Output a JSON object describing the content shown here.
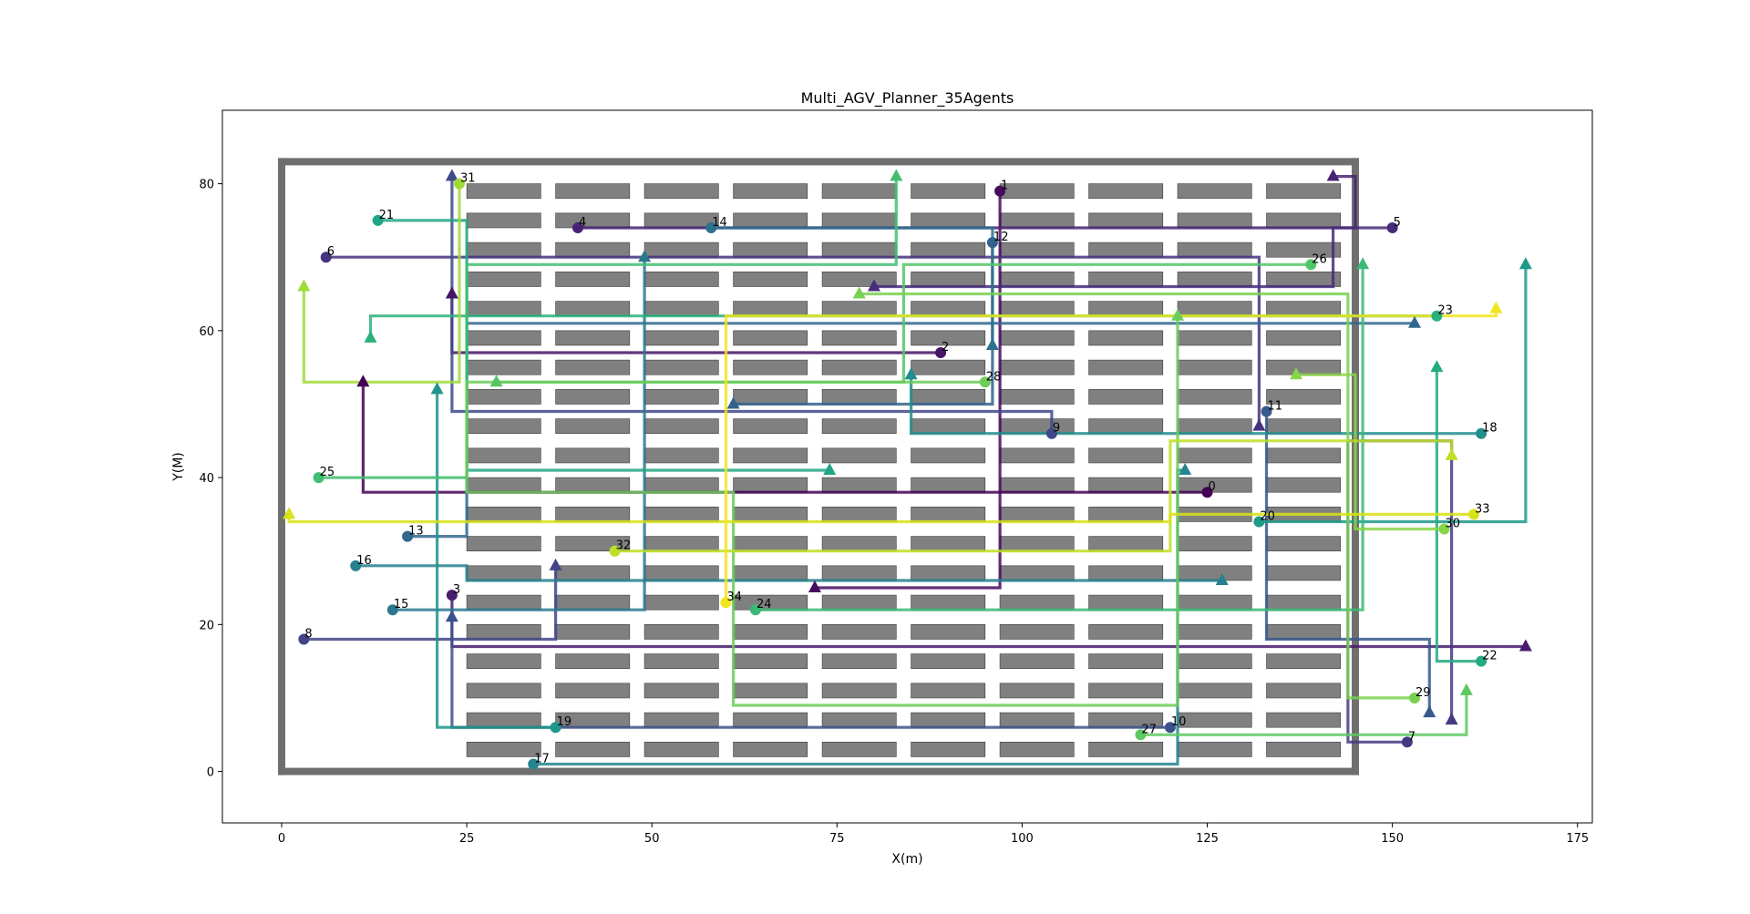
{
  "chart_data": {
    "type": "line",
    "title": "Multi_AGV_Planner_35Agents",
    "xlabel": "X(m)",
    "ylabel": "Y(M)",
    "xlim": [
      -8,
      177
    ],
    "ylim": [
      -7,
      90
    ],
    "xticks": [
      0,
      25,
      50,
      75,
      100,
      125,
      150,
      175
    ],
    "yticks": [
      0,
      20,
      40,
      60,
      80
    ],
    "grid": false,
    "legend": "none",
    "warehouse": {
      "boundary": [
        0,
        145,
        0,
        83
      ],
      "shelf_columns": [
        [
          25,
          35
        ],
        [
          37,
          47
        ],
        [
          49,
          59
        ],
        [
          61,
          71
        ],
        [
          73,
          83
        ],
        [
          85,
          95
        ],
        [
          97,
          107
        ],
        [
          109,
          119
        ],
        [
          121,
          131
        ],
        [
          133,
          143
        ]
      ],
      "shelf_rows_y": [
        2,
        6,
        10,
        14,
        18,
        22,
        26,
        30,
        34,
        38,
        42,
        46,
        50,
        54,
        58,
        62,
        66,
        70,
        74,
        78
      ],
      "shelf_height": 2,
      "shelf_color": "#808080",
      "boundary_color": "#6f6f6f"
    },
    "agents": [
      {
        "id": "0",
        "color": "#440154",
        "start": [
          125,
          38
        ],
        "goal": [
          11,
          53
        ],
        "path": [
          [
            125,
            38
          ],
          [
            11,
            38
          ],
          [
            11,
            53
          ]
        ]
      },
      {
        "id": "1",
        "color": "#460b5e",
        "start": [
          97,
          79
        ],
        "goal": [
          72,
          25
        ],
        "path": [
          [
            97,
            79
          ],
          [
            97,
            25
          ],
          [
            72,
            25
          ]
        ]
      },
      {
        "id": "2",
        "color": "#481467",
        "start": [
          89,
          57
        ],
        "goal": [
          23,
          65
        ],
        "path": [
          [
            89,
            57
          ],
          [
            23,
            57
          ],
          [
            23,
            65
          ]
        ]
      },
      {
        "id": "3",
        "color": "#481c6e",
        "start": [
          23,
          24
        ],
        "goal": [
          168,
          17
        ],
        "path": [
          [
            23,
            24
          ],
          [
            23,
            17
          ],
          [
            168,
            17
          ]
        ]
      },
      {
        "id": "4",
        "color": "#482374",
        "start": [
          40,
          74
        ],
        "goal": [
          142,
          81
        ],
        "path": [
          [
            40,
            74
          ],
          [
            145,
            74
          ],
          [
            145,
            81
          ],
          [
            142,
            81
          ]
        ]
      },
      {
        "id": "5",
        "color": "#472c7a",
        "start": [
          150,
          74
        ],
        "goal": [
          80,
          66
        ],
        "path": [
          [
            150,
            74
          ],
          [
            142,
            74
          ],
          [
            142,
            66
          ],
          [
            80,
            66
          ]
        ]
      },
      {
        "id": "6",
        "color": "#46337f",
        "start": [
          6,
          70
        ],
        "goal": [
          132,
          47
        ],
        "path": [
          [
            6,
            70
          ],
          [
            132,
            70
          ],
          [
            132,
            47
          ]
        ]
      },
      {
        "id": "7",
        "color": "#443983",
        "start": [
          152,
          4
        ],
        "goal": [
          158,
          7
        ],
        "path": [
          [
            152,
            4
          ],
          [
            144,
            4
          ],
          [
            144,
            45
          ],
          [
            158,
            45
          ],
          [
            158,
            7
          ]
        ]
      },
      {
        "id": "8",
        "color": "#414487",
        "start": [
          3,
          18
        ],
        "goal": [
          37,
          28
        ],
        "path": [
          [
            3,
            18
          ],
          [
            37,
            18
          ],
          [
            37,
            28
          ]
        ]
      },
      {
        "id": "9",
        "color": "#3e4989",
        "start": [
          104,
          46
        ],
        "goal": [
          23,
          81
        ],
        "path": [
          [
            104,
            46
          ],
          [
            104,
            49
          ],
          [
            23,
            49
          ],
          [
            23,
            81
          ]
        ]
      },
      {
        "id": "10",
        "color": "#3b528b",
        "start": [
          120,
          6
        ],
        "goal": [
          23,
          21
        ],
        "path": [
          [
            120,
            6
          ],
          [
            23,
            6
          ],
          [
            23,
            21
          ]
        ]
      },
      {
        "id": "11",
        "color": "#37598c",
        "start": [
          133,
          49
        ],
        "goal": [
          155,
          8
        ],
        "path": [
          [
            133,
            49
          ],
          [
            133,
            18
          ],
          [
            155,
            18
          ],
          [
            155,
            8
          ]
        ]
      },
      {
        "id": "12",
        "color": "#33638d",
        "start": [
          96,
          72
        ],
        "goal": [
          61,
          50
        ],
        "path": [
          [
            96,
            72
          ],
          [
            96,
            50
          ],
          [
            61,
            50
          ]
        ]
      },
      {
        "id": "13",
        "color": "#31688e",
        "start": [
          17,
          32
        ],
        "goal": [
          153,
          61
        ],
        "path": [
          [
            17,
            32
          ],
          [
            25,
            32
          ],
          [
            25,
            61
          ],
          [
            153,
            61
          ]
        ]
      },
      {
        "id": "14",
        "color": "#2d718e",
        "start": [
          58,
          74
        ],
        "goal": [
          96,
          58
        ],
        "path": [
          [
            58,
            74
          ],
          [
            96,
            74
          ],
          [
            96,
            58
          ]
        ]
      },
      {
        "id": "15",
        "color": "#2a788e",
        "start": [
          15,
          22
        ],
        "goal": [
          49,
          70
        ],
        "path": [
          [
            15,
            22
          ],
          [
            49,
            22
          ],
          [
            49,
            70
          ]
        ]
      },
      {
        "id": "16",
        "color": "#27808e",
        "start": [
          10,
          28
        ],
        "goal": [
          127,
          26
        ],
        "path": [
          [
            10,
            28
          ],
          [
            25,
            28
          ],
          [
            25,
            26
          ],
          [
            127,
            26
          ]
        ]
      },
      {
        "id": "17",
        "color": "#25858e",
        "start": [
          34,
          1
        ],
        "goal": [
          122,
          41
        ],
        "path": [
          [
            34,
            1
          ],
          [
            121,
            1
          ],
          [
            121,
            41
          ],
          [
            122,
            41
          ]
        ]
      },
      {
        "id": "18",
        "color": "#228d8d",
        "start": [
          162,
          46
        ],
        "goal": [
          85,
          54
        ],
        "path": [
          [
            162,
            46
          ],
          [
            85,
            46
          ],
          [
            85,
            54
          ]
        ]
      },
      {
        "id": "19",
        "color": "#1f958b",
        "start": [
          37,
          6
        ],
        "goal": [
          21,
          52
        ],
        "path": [
          [
            37,
            6
          ],
          [
            21,
            6
          ],
          [
            21,
            52
          ]
        ]
      },
      {
        "id": "20",
        "color": "#1f9a8a",
        "start": [
          132,
          34
        ],
        "goal": [
          168,
          69
        ],
        "path": [
          [
            132,
            34
          ],
          [
            168,
            34
          ],
          [
            168,
            69
          ]
        ]
      },
      {
        "id": "21",
        "color": "#21a685",
        "start": [
          13,
          75
        ],
        "goal": [
          74,
          41
        ],
        "path": [
          [
            13,
            75
          ],
          [
            25,
            75
          ],
          [
            25,
            41
          ],
          [
            74,
            41
          ]
        ]
      },
      {
        "id": "22",
        "color": "#25ab82",
        "start": [
          162,
          15
        ],
        "goal": [
          156,
          55
        ],
        "path": [
          [
            162,
            15
          ],
          [
            156,
            15
          ],
          [
            156,
            55
          ]
        ]
      },
      {
        "id": "23",
        "color": "#2cb17e",
        "start": [
          156,
          62
        ],
        "goal": [
          12,
          59
        ],
        "path": [
          [
            156,
            62
          ],
          [
            12,
            62
          ],
          [
            12,
            59
          ]
        ]
      },
      {
        "id": "24",
        "color": "#3aba76",
        "start": [
          64,
          22
        ],
        "goal": [
          146,
          69
        ],
        "path": [
          [
            64,
            22
          ],
          [
            146,
            22
          ],
          [
            146,
            69
          ]
        ]
      },
      {
        "id": "25",
        "color": "#42be71",
        "start": [
          5,
          40
        ],
        "goal": [
          83,
          81
        ],
        "path": [
          [
            5,
            40
          ],
          [
            25,
            40
          ],
          [
            25,
            69
          ],
          [
            83,
            69
          ],
          [
            83,
            81
          ]
        ]
      },
      {
        "id": "26",
        "color": "#54c568",
        "start": [
          139,
          69
        ],
        "goal": [
          29,
          53
        ],
        "path": [
          [
            139,
            69
          ],
          [
            84,
            69
          ],
          [
            84,
            53
          ],
          [
            29,
            53
          ]
        ]
      },
      {
        "id": "27",
        "color": "#5ec962",
        "start": [
          116,
          5
        ],
        "goal": [
          160,
          11
        ],
        "path": [
          [
            116,
            5
          ],
          [
            160,
            5
          ],
          [
            160,
            11
          ]
        ]
      },
      {
        "id": "28",
        "color": "#6ccd5a",
        "start": [
          95,
          53
        ],
        "goal": [
          121,
          62
        ],
        "path": [
          [
            95,
            53
          ],
          [
            29,
            53
          ],
          [
            25,
            53
          ],
          [
            25,
            38
          ],
          [
            61,
            38
          ],
          [
            61,
            9
          ],
          [
            121,
            9
          ],
          [
            121,
            62
          ]
        ]
      },
      {
        "id": "29",
        "color": "#7ad151",
        "start": [
          153,
          10
        ],
        "goal": [
          78,
          65
        ],
        "path": [
          [
            153,
            10
          ],
          [
            144,
            10
          ],
          [
            144,
            65
          ],
          [
            78,
            65
          ]
        ]
      },
      {
        "id": "30",
        "color": "#89d548",
        "start": [
          157,
          33
        ],
        "goal": [
          137,
          54
        ],
        "path": [
          [
            157,
            33
          ],
          [
            145,
            33
          ],
          [
            145,
            54
          ],
          [
            137,
            54
          ]
        ]
      },
      {
        "id": "31",
        "color": "#a0da39",
        "start": [
          24,
          80
        ],
        "goal": [
          3,
          66
        ],
        "path": [
          [
            24,
            80
          ],
          [
            24,
            53
          ],
          [
            3,
            53
          ],
          [
            3,
            66
          ]
        ]
      },
      {
        "id": "32",
        "color": "#bddf26",
        "start": [
          45,
          30
        ],
        "goal": [
          158,
          43
        ],
        "path": [
          [
            45,
            30
          ],
          [
            120,
            30
          ],
          [
            120,
            45
          ],
          [
            158,
            45
          ],
          [
            158,
            43
          ]
        ]
      },
      {
        "id": "33",
        "color": "#d8e219",
        "start": [
          161,
          35
        ],
        "goal": [
          1,
          35
        ],
        "path": [
          [
            161,
            35
          ],
          [
            120,
            35
          ],
          [
            120,
            34
          ],
          [
            1,
            34
          ],
          [
            1,
            35
          ]
        ]
      },
      {
        "id": "34",
        "color": "#f1e51d",
        "start": [
          60,
          23
        ],
        "goal": [
          164,
          63
        ],
        "path": [
          [
            60,
            23
          ],
          [
            60,
            62
          ],
          [
            164,
            62
          ],
          [
            164,
            63
          ]
        ]
      }
    ]
  }
}
